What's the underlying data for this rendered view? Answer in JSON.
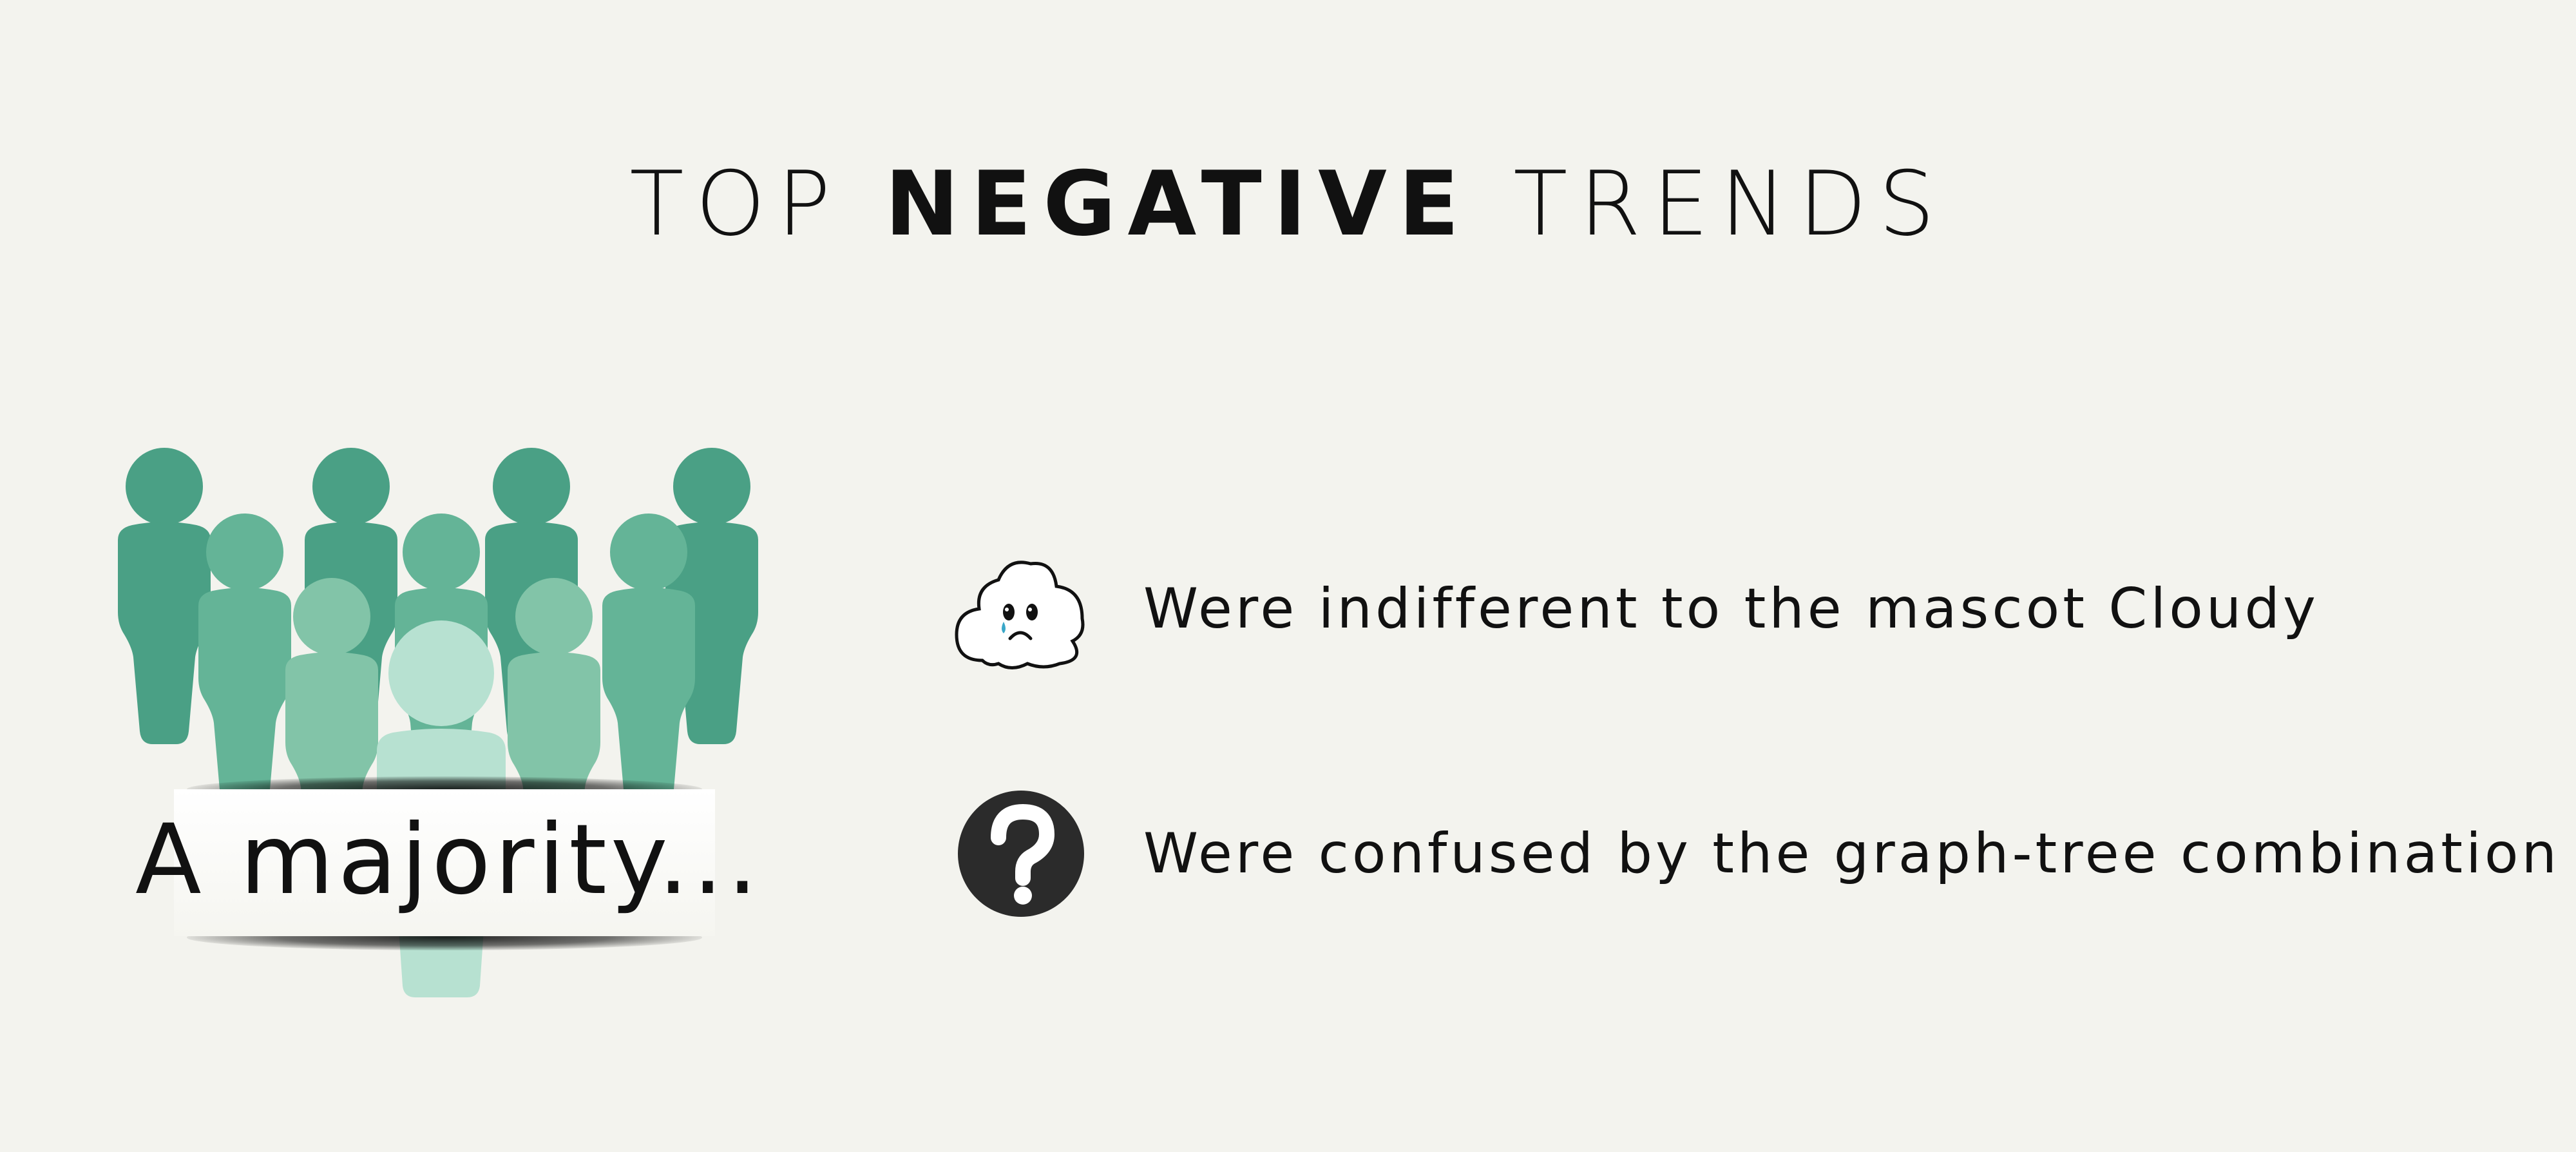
{
  "title": {
    "prefix": "TOP",
    "emphasis": "NEGATIVE",
    "suffix": "TRENDS"
  },
  "crowd": {
    "label": "A majority...",
    "colors": {
      "back": "#4aa085",
      "middle": "#64b497",
      "front": "#82c4a8",
      "center": "#b7e1d1"
    }
  },
  "trends": [
    {
      "icon": "sad-cloud-icon",
      "text": "Were indifferent to the mascot Cloudy"
    },
    {
      "icon": "question-mark-icon",
      "text": "Were confused by the graph-tree combination"
    }
  ],
  "colors": {
    "background": "#f3f3ee",
    "text": "#111111",
    "question_badge": "#2b2b2b",
    "tear": "#3aa7c8"
  }
}
